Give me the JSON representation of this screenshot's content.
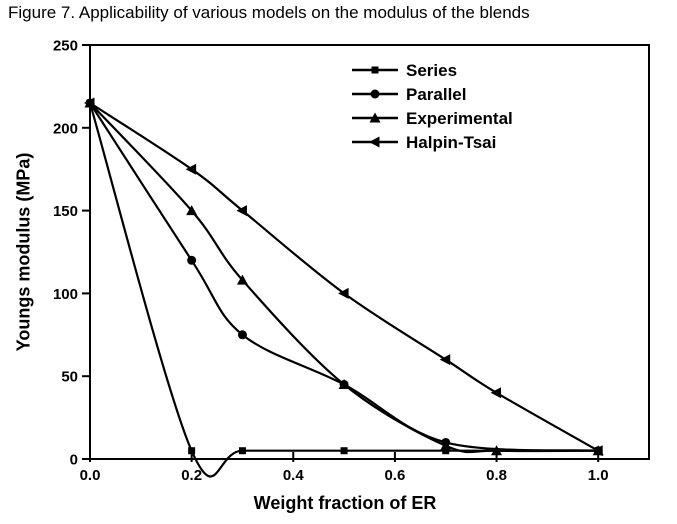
{
  "figure_label": "Figure 7.",
  "colors": {
    "line": "#000000",
    "text": "#000000",
    "background": "#ffffff"
  },
  "chart_data": {
    "type": "line",
    "title": "Figure 7. Applicability of various models on the modulus of the blends",
    "xlabel": "Weight fraction of ER",
    "ylabel": "Youngs modulus (MPa)",
    "xlim": [
      0,
      1.1
    ],
    "ylim": [
      0,
      250
    ],
    "grid": false,
    "legend_position": "top-right-inside",
    "xticks": [
      0.0,
      0.2,
      0.4,
      0.6,
      0.8,
      1.0
    ],
    "xtick_labels": [
      "0.0",
      "0.2",
      "0.4",
      "0.6",
      "0.8",
      "1.0"
    ],
    "yticks": [
      0,
      50,
      100,
      150,
      200,
      250
    ],
    "ytick_labels": [
      "0",
      "50",
      "100",
      "150",
      "200",
      "250"
    ],
    "series": [
      {
        "name": "Series",
        "marker": "square",
        "x": [
          0,
          0.2,
          0.3,
          0.5,
          0.7,
          1.0
        ],
        "y": [
          215,
          5,
          5,
          5,
          5,
          5
        ]
      },
      {
        "name": "Parallel",
        "marker": "circle",
        "x": [
          0,
          0.2,
          0.3,
          0.5,
          0.7,
          1.0
        ],
        "y": [
          215,
          120,
          75,
          45,
          10,
          5
        ]
      },
      {
        "name": "Experimental",
        "marker": "triangle-up",
        "x": [
          0,
          0.2,
          0.3,
          0.5,
          0.7,
          0.8,
          1.0
        ],
        "y": [
          215,
          150,
          108,
          45,
          8,
          5,
          5
        ]
      },
      {
        "name": "Halpin-Tsai",
        "marker": "triangle-left",
        "x": [
          0,
          0.2,
          0.3,
          0.5,
          0.7,
          0.8,
          1.0
        ],
        "y": [
          215,
          175,
          150,
          100,
          60,
          40,
          5
        ]
      }
    ]
  }
}
